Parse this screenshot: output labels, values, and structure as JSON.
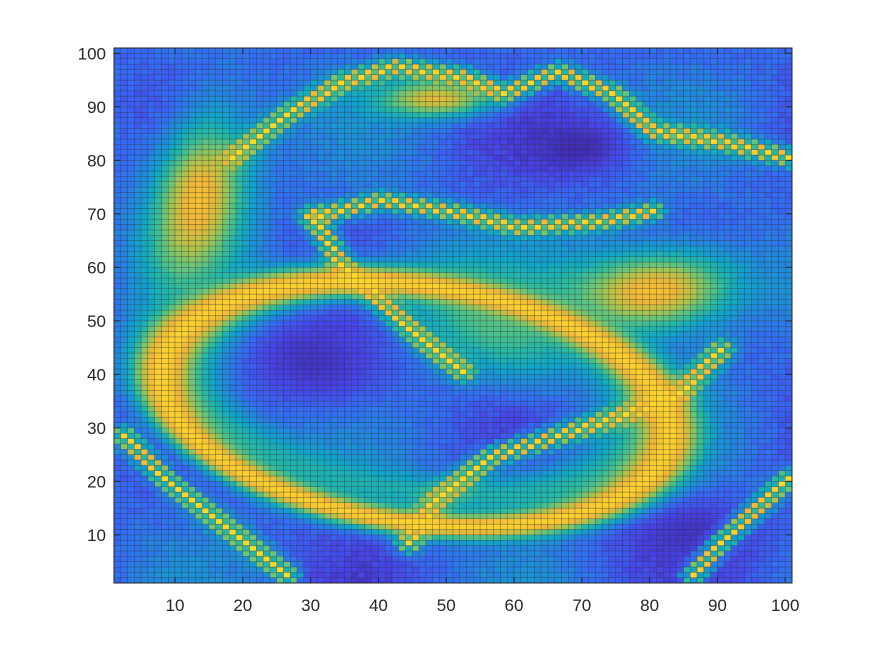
{
  "chart_data": {
    "type": "heatmap",
    "title": "",
    "xlabel": "",
    "ylabel": "",
    "grid_size": [
      100,
      100
    ],
    "xlim": [
      1,
      101
    ],
    "ylim": [
      1,
      101
    ],
    "x_ticks": [
      10,
      20,
      30,
      40,
      50,
      60,
      70,
      80,
      90,
      100
    ],
    "y_ticks": [
      10,
      20,
      30,
      40,
      50,
      60,
      70,
      80,
      90,
      100
    ],
    "x_tick_labels": [
      "10",
      "20",
      "30",
      "40",
      "50",
      "60",
      "70",
      "80",
      "90",
      "100"
    ],
    "y_tick_labels": [
      "10",
      "20",
      "30",
      "40",
      "50",
      "60",
      "70",
      "80",
      "90",
      "100"
    ],
    "value_range": [
      0,
      1
    ],
    "colormap": "parula",
    "colormap_stops": [
      "#3e26a8",
      "#4743e9",
      "#3469f7",
      "#1f8bdc",
      "#0ea6ca",
      "#26b9a3",
      "#66c579",
      "#b4c347",
      "#f1b637",
      "#fbd12e",
      "#f9fb15"
    ],
    "cell_edge_color": "#262626",
    "features": [
      {
        "shape": "blob",
        "value": 0.58,
        "cx": 56,
        "cy": 50,
        "rx": 17,
        "ry": 11,
        "angle": -38
      },
      {
        "shape": "blob",
        "value": 0.84,
        "cx": 80,
        "cy": 55,
        "rx": 15,
        "ry": 9,
        "angle": 8
      },
      {
        "shape": "blob",
        "value": 0.84,
        "cx": 13,
        "cy": 72,
        "rx": 8,
        "ry": 19,
        "angle": -8
      },
      {
        "shape": "blob",
        "value": 0.78,
        "cx": 48,
        "cy": 91,
        "rx": 10,
        "ry": 4,
        "angle": 0
      },
      {
        "shape": "blob",
        "value": 0.02,
        "cx": 69,
        "cy": 82,
        "rx": 9,
        "ry": 6,
        "angle": 0
      },
      {
        "shape": "blob",
        "value": 0.05,
        "cx": 30,
        "cy": 42,
        "rx": 14,
        "ry": 10,
        "angle": -25
      },
      {
        "shape": "blob",
        "value": 0.05,
        "cx": 60,
        "cy": 14,
        "rx": 17,
        "ry": 6,
        "angle": 5
      },
      {
        "shape": "blob",
        "value": 0.05,
        "cx": 86,
        "cy": 10,
        "rx": 12,
        "ry": 7,
        "angle": 0
      },
      {
        "shape": "ring",
        "value": 0.46,
        "cx": 45,
        "cy": 37,
        "rx": 35,
        "ry": 19,
        "angle": -12,
        "width": 2.6
      },
      {
        "shape": "ring",
        "value": 0.9,
        "cx": 45,
        "cy": 34,
        "rx": 38,
        "ry": 22,
        "angle": -12,
        "width": 1.8
      },
      {
        "shape": "band",
        "value": 0.92,
        "points": [
          [
            18,
            80
          ],
          [
            26,
            88
          ],
          [
            34,
            94
          ],
          [
            42,
            97
          ],
          [
            52,
            95
          ],
          [
            58,
            92
          ],
          [
            66,
            96
          ],
          [
            74,
            92
          ],
          [
            80,
            85
          ],
          [
            90,
            83
          ],
          [
            100,
            80
          ]
        ],
        "width": 1.3
      },
      {
        "shape": "band",
        "value": 0.92,
        "points": [
          [
            30,
            69
          ],
          [
            40,
            72
          ],
          [
            50,
            70
          ],
          [
            60,
            67
          ],
          [
            72,
            68
          ],
          [
            80,
            70
          ]
        ],
        "width": 1.2
      },
      {
        "shape": "band",
        "value": 0.92,
        "points": [
          [
            30,
            69
          ],
          [
            34,
            60
          ],
          [
            40,
            53
          ],
          [
            46,
            46
          ],
          [
            52,
            40
          ]
        ],
        "width": 1.3
      },
      {
        "shape": "band",
        "value": 0.92,
        "points": [
          [
            44,
            8
          ],
          [
            48,
            16
          ],
          [
            56,
            24
          ],
          [
            66,
            28
          ],
          [
            76,
            32
          ],
          [
            84,
            36
          ],
          [
            90,
            44
          ]
        ],
        "width": 1.4
      },
      {
        "shape": "band",
        "value": 0.92,
        "points": [
          [
            86,
            2
          ],
          [
            90,
            8
          ],
          [
            95,
            14
          ],
          [
            100,
            20
          ]
        ],
        "width": 1.2
      },
      {
        "shape": "band",
        "value": 0.92,
        "points": [
          [
            2,
            28
          ],
          [
            8,
            20
          ],
          [
            14,
            14
          ],
          [
            20,
            8
          ],
          [
            26,
            2
          ]
        ],
        "width": 1.3
      }
    ]
  }
}
